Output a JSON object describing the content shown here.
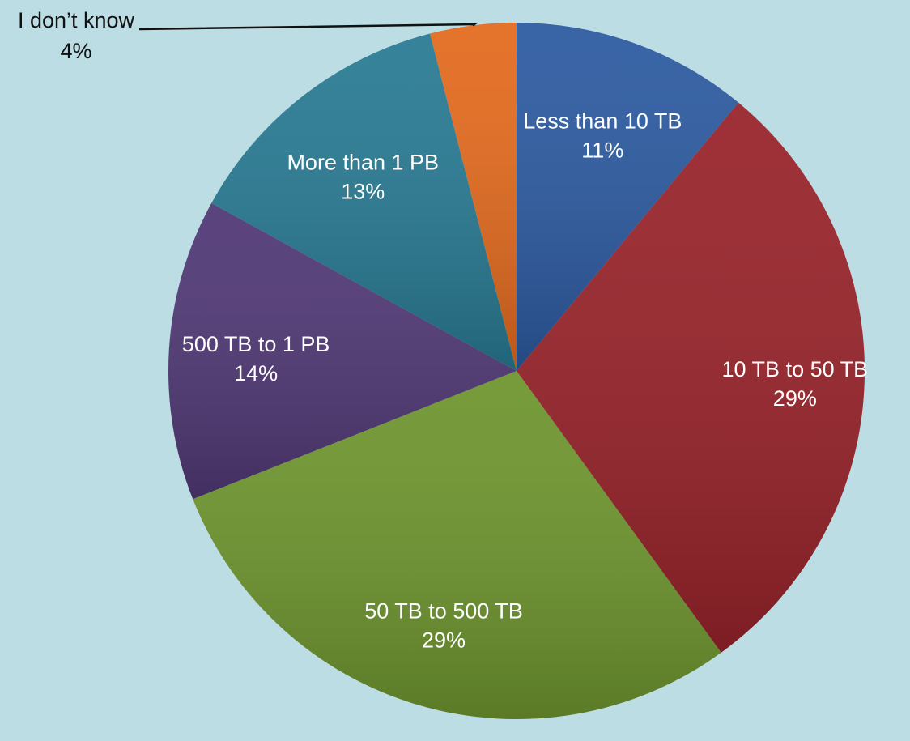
{
  "chart_data": {
    "type": "pie",
    "title": "",
    "start": "12 o'clock, clockwise",
    "slices": [
      {
        "label": "Less than 10 TB",
        "value": 11,
        "value_label": "11%",
        "color": "#2c5aa0"
      },
      {
        "label": "10 TB to 50 TB",
        "value": 29,
        "value_label": "29%",
        "color": "#98232a"
      },
      {
        "label": "50 TB to 500 TB",
        "value": 29,
        "value_label": "29%",
        "color": "#6e952e"
      },
      {
        "label": "500 TB to 1 PB",
        "value": 14,
        "value_label": "14%",
        "color": "#503875"
      },
      {
        "label": "More than 1 PB",
        "value": 13,
        "value_label": "13%",
        "color": "#287a93"
      },
      {
        "label": "I don’t know",
        "value": 4,
        "value_label": "4%",
        "color": "#e36a1e",
        "callout": true
      }
    ]
  }
}
